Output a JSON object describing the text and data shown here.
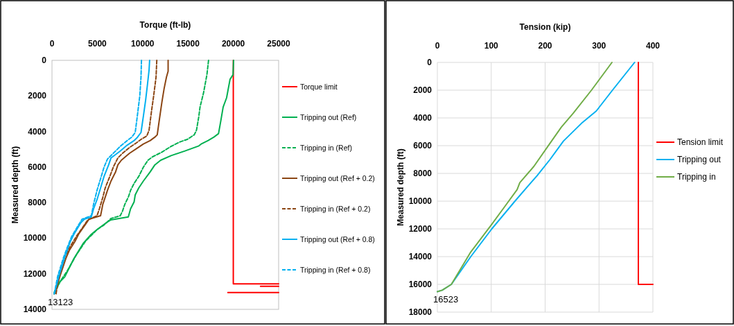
{
  "chart_data": [
    {
      "type": "line",
      "xlabel": "Torque (ft-lb)",
      "ylabel": "Measured depth (ft)",
      "xlim": [
        0,
        25000
      ],
      "xticks": [
        0,
        5000,
        10000,
        15000,
        20000,
        25000
      ],
      "ylim": [
        14000,
        0
      ],
      "yticks": [
        0,
        2000,
        4000,
        6000,
        8000,
        10000,
        12000,
        14000
      ],
      "grid": false,
      "legend": "right",
      "annotations": [
        {
          "text": "13123",
          "x": 0,
          "y": 13123
        }
      ],
      "series": [
        {
          "name": "Torque limit",
          "color": "#ff0000",
          "line_style": "solid",
          "x": [
            20000,
            20000,
            25000,
            null,
            23000,
            25000,
            null,
            19400,
            25000
          ],
          "values": [
            0,
            12570,
            12570,
            null,
            12700,
            12700,
            null,
            13050,
            13050
          ]
        },
        {
          "name": "Tripping out (Ref)",
          "color": "#00b050",
          "line_style": "solid",
          "x": [
            20030,
            19970,
            19640,
            19260,
            18880,
            18620,
            18370,
            17860,
            17220,
            16450,
            16200,
            14670,
            13140,
            11990,
            11350,
            10840,
            10080,
            9570,
            9180,
            9060,
            8670,
            8420,
            6510,
            6000,
            4970,
            4340,
            3440,
            2420,
            1400,
            890,
            260,
            250
          ],
          "values": [
            0,
            806,
            1066,
            2106,
            2626,
            3406,
            4121,
            4316,
            4511,
            4706,
            4810,
            5096,
            5356,
            5616,
            5876,
            6266,
            6786,
            7176,
            7566,
            7956,
            8346,
            8801,
            8970,
            9126,
            9516,
            9776,
            10296,
            11141,
            12181,
            12441,
            13026,
            13123
          ]
        },
        {
          "name": "Tripping in (Ref)",
          "color": "#00b050",
          "line_style": "dashed",
          "x": [
            17270,
            17090,
            16710,
            16330,
            16200,
            15940,
            15690,
            14920,
            14160,
            13140,
            12120,
            11100,
            10590,
            10080,
            9570,
            9060,
            8670,
            8420,
            8040,
            7780,
            7530,
            6510,
            5740,
            4970,
            4460,
            3700,
            2680,
            1660,
            890,
            250
          ],
          "values": [
            0,
            806,
            1846,
            2626,
            3146,
            3926,
            4186,
            4446,
            4576,
            4836,
            5161,
            5421,
            5616,
            6006,
            6526,
            6916,
            7306,
            7696,
            8086,
            8476,
            8736,
            8892,
            9256,
            9516,
            9776,
            10166,
            10946,
            11856,
            12441,
            13123
          ]
        },
        {
          "name": "Tripping out (Ref + 0.2)",
          "color": "#8b4513",
          "line_style": "solid",
          "x": [
            12810,
            12810,
            12630,
            12370,
            12120,
            11860,
            11610,
            11350,
            10840,
            10080,
            9310,
            8550,
            7650,
            7270,
            7020,
            6510,
            6120,
            5870,
            5610,
            5360,
            4080,
            3830,
            2930,
            2550,
            1910,
            1530,
            890,
            510,
            250
          ],
          "values": [
            0,
            611,
            936,
            1586,
            2366,
            3276,
            4186,
            4316,
            4511,
            4706,
            4966,
            5226,
            5616,
            5876,
            6266,
            6786,
            7306,
            7696,
            8086,
            8736,
            8931,
            9126,
            9776,
            10166,
            10686,
            11141,
            12116,
            12766,
            13123
          ]
        },
        {
          "name": "Tripping in (Ref + 0.2)",
          "color": "#8b4513",
          "line_style": "dashed",
          "x": [
            11560,
            11480,
            11220,
            10970,
            10710,
            10460,
            9820,
            9310,
            8550,
            7780,
            7270,
            6760,
            6380,
            5870,
            5610,
            5230,
            4970,
            3950,
            3570,
            2680,
            1910,
            1400,
            770,
            450
          ],
          "values": [
            0,
            936,
            1976,
            2886,
            3926,
            4251,
            4446,
            4641,
            4901,
            5226,
            5486,
            6006,
            6526,
            7176,
            7696,
            8346,
            8736,
            8970,
            9256,
            9906,
            10556,
            11076,
            12116,
            13123
          ]
        },
        {
          "name": "Tripping out (Ref + 0.8)",
          "color": "#00b0f0",
          "line_style": "solid",
          "x": [
            10770,
            10710,
            10540,
            10330,
            10080,
            9820,
            9440,
            9060,
            8290,
            7530,
            6510,
            6250,
            5740,
            5360,
            4970,
            4590,
            4340,
            3570,
            3190,
            2420,
            2040,
            1400,
            770,
            250
          ],
          "values": [
            0,
            546,
            1326,
            2236,
            3146,
            4056,
            4316,
            4511,
            4771,
            5096,
            5486,
            5876,
            6526,
            7176,
            7826,
            8346,
            8801,
            8931,
            9126,
            9776,
            10166,
            11076,
            12116,
            13123
          ]
        },
        {
          "name": "Tripping in (Ref + 0.8)",
          "color": "#00b0f0",
          "line_style": "dashed",
          "x": [
            9870,
            9820,
            9690,
            9440,
            9180,
            8800,
            8290,
            7530,
            6760,
            6120,
            5740,
            5360,
            4970,
            4590,
            4340,
            3320,
            2930,
            2170,
            1660,
            1280,
            640,
            250
          ],
          "values": [
            0,
            936,
            1976,
            3016,
            4056,
            4316,
            4511,
            4836,
            5226,
            5551,
            6006,
            6656,
            7306,
            8086,
            8736,
            8931,
            9256,
            9906,
            10556,
            11076,
            12116,
            13123
          ]
        }
      ]
    },
    {
      "type": "line",
      "xlabel": "Tension (kip)",
      "ylabel": "Measured depth (ft)",
      "xlim": [
        0,
        400
      ],
      "xticks": [
        0,
        100,
        200,
        300,
        400
      ],
      "ylim": [
        18000,
        0
      ],
      "yticks": [
        0,
        2000,
        4000,
        6000,
        8000,
        10000,
        12000,
        14000,
        16000,
        18000
      ],
      "grid": true,
      "legend": "right",
      "annotations": [
        {
          "text": "16523",
          "x": 0,
          "y": 16523
        }
      ],
      "series": [
        {
          "name": "Tension limit",
          "color": "#ff0000",
          "line_style": "solid",
          "x": [
            373,
            373,
            400
          ],
          "values": [
            0,
            16000,
            16000
          ]
        },
        {
          "name": "Tripping out",
          "color": "#00b0f0",
          "line_style": "solid",
          "x": [
            366,
            325,
            295,
            269,
            234,
            209,
            185,
            170,
            144,
            101,
            62,
            26,
            9,
            0
          ],
          "values": [
            0,
            2000,
            3500,
            4333,
            5667,
            7000,
            8167,
            8833,
            10000,
            12000,
            14000,
            16000,
            16417,
            16523
          ]
        },
        {
          "name": "Tripping in",
          "color": "#70ad47",
          "line_style": "solid",
          "x": [
            324,
            286,
            252,
            230,
            209,
            179,
            153,
            148,
            123,
            101,
            62,
            26,
            9,
            0
          ],
          "values": [
            0,
            2000,
            3667,
            4667,
            5833,
            7500,
            8667,
            9167,
            10500,
            11667,
            13667,
            16000,
            16417,
            16523
          ]
        }
      ]
    }
  ]
}
